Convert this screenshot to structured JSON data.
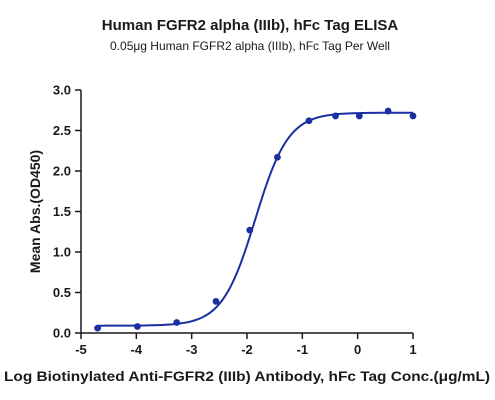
{
  "chart_data": {
    "type": "scatter",
    "title": "Human FGFR2 alpha (IIIb), hFc Tag ELISA",
    "subtitle": "0.05μg Human FGFR2 alpha (IIIb), hFc Tag Per Well",
    "xlabel": "Log Biotinylated Anti-FGFR2 (IIIb) Antibody, hFc Tag Conc.(μg/mL)",
    "ylabel": "Mean Abs.(OD450)",
    "xlim": [
      -5,
      1
    ],
    "ylim": [
      0,
      3.0
    ],
    "x_ticks": [
      "-5",
      "-4",
      "-3",
      "-2",
      "-1",
      "0",
      "1"
    ],
    "y_ticks": [
      "0.0",
      "0.5",
      "1.0",
      "1.5",
      "2.0",
      "2.5",
      "3.0"
    ],
    "grid": false,
    "series": [
      {
        "points": [
          {
            "x": -4.7,
            "y": 0.06
          },
          {
            "x": -3.98,
            "y": 0.08
          },
          {
            "x": -3.27,
            "y": 0.13
          },
          {
            "x": -2.56,
            "y": 0.39
          },
          {
            "x": -1.95,
            "y": 1.27
          },
          {
            "x": -1.45,
            "y": 2.17
          },
          {
            "x": -0.88,
            "y": 2.62
          },
          {
            "x": -0.4,
            "y": 2.68
          },
          {
            "x": 0.03,
            "y": 2.68
          },
          {
            "x": 0.55,
            "y": 2.74
          },
          {
            "x": 1.0,
            "y": 2.68
          }
        ],
        "fit": {
          "model": "4PL",
          "bottom": 0.09,
          "top": 2.72,
          "ec50_log": -1.85,
          "hill": 1.45
        }
      }
    ],
    "colors": {
      "series": "#1a2fa0",
      "axis": "#1a1a1a"
    }
  }
}
